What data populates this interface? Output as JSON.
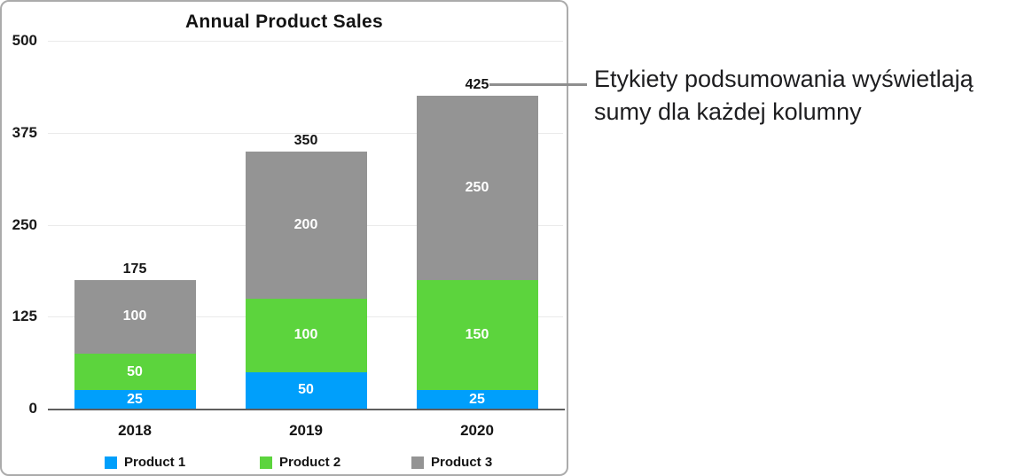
{
  "callout": {
    "line1": "Etykiety podsumowania wyświetlają",
    "line2": "sumy dla każdej kolumny"
  },
  "chart_data": {
    "type": "bar",
    "stacked": true,
    "title": "Annual Product Sales",
    "categories": [
      "2018",
      "2019",
      "2020"
    ],
    "series": [
      {
        "name": "Product 1",
        "color": "#009FFB",
        "values": [
          25,
          50,
          25
        ]
      },
      {
        "name": "Product 2",
        "color": "#5CD43D",
        "values": [
          50,
          100,
          150
        ]
      },
      {
        "name": "Product 3",
        "color": "#949494",
        "values": [
          100,
          200,
          250
        ]
      }
    ],
    "totals": [
      175,
      350,
      425
    ],
    "summary_labels_shown": true,
    "y_ticks": [
      0,
      125,
      250,
      375,
      500
    ],
    "ylim": [
      0,
      500
    ],
    "grid": true,
    "legend": [
      "Product 1",
      "Product 2",
      "Product 3"
    ],
    "legend_position": "bottom",
    "callout_points_to_total": 425
  }
}
